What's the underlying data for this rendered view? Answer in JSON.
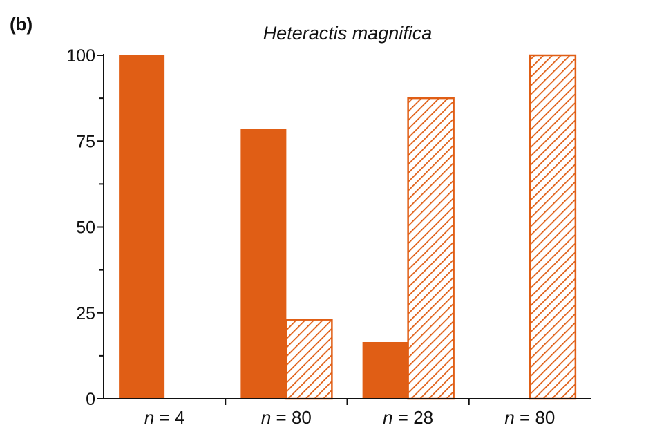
{
  "panel_label": "(b)",
  "chart_data": {
    "type": "bar",
    "title": "Heteractis magnifica",
    "xlabel": "",
    "ylabel": "",
    "ylim": [
      0,
      100
    ],
    "yticks": [
      "0",
      "25",
      "50",
      "75",
      "100"
    ],
    "categories": [
      {
        "n_var": "n",
        "n_rest": " = 4"
      },
      {
        "n_var": "n",
        "n_rest": " = 80"
      },
      {
        "n_var": "n",
        "n_rest": " = 28"
      },
      {
        "n_var": "n",
        "n_rest": " = 80"
      }
    ],
    "series": [
      {
        "style": "solid",
        "values": [
          100,
          78.5,
          16.5,
          0
        ]
      },
      {
        "style": "hatched",
        "values": [
          0,
          23,
          87.5,
          100
        ]
      }
    ],
    "colors": {
      "bar": "#E05E15",
      "axis": "#111111"
    },
    "grid": false
  }
}
